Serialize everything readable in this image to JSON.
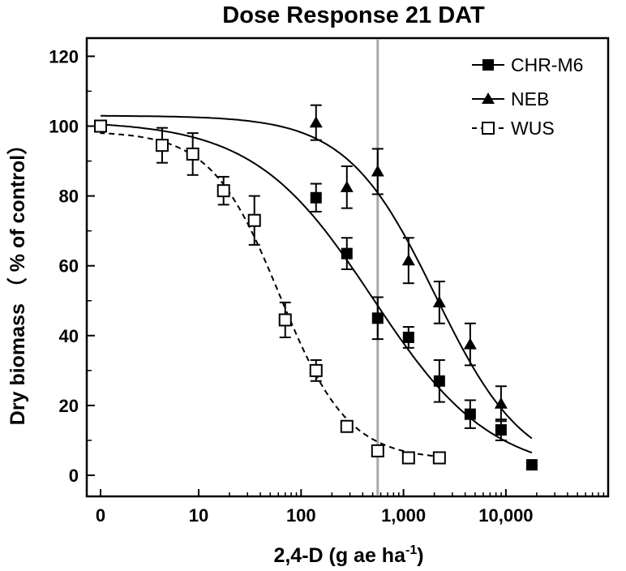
{
  "chart_data": {
    "type": "scatter",
    "title": "Dose Response 21 DAT",
    "xlabel": "2,4-D (g ae ha",
    "xlabel_superscript": "-1",
    "xlabel_suffix": ")",
    "ylabel": "Dry biomass （ % of control）",
    "x_scale": "log",
    "x_ticks": [
      {
        "value": 0,
        "label": "0"
      },
      {
        "value": 10,
        "label": "10"
      },
      {
        "value": 100,
        "label": "100"
      },
      {
        "value": 1000,
        "label": "1,000"
      },
      {
        "value": 10000,
        "label": "10,000"
      }
    ],
    "y_ticks": [
      0,
      20,
      40,
      60,
      80,
      100,
      120
    ],
    "ylim": [
      -5,
      130
    ],
    "reference_line_x": 560,
    "legend_position": "top-right",
    "series": [
      {
        "name": "CHR-M6",
        "marker": "filled-square",
        "line": "solid",
        "points": [
          {
            "x": 0,
            "y": 100,
            "err": 1.5
          },
          {
            "x": 140,
            "y": 79.5,
            "err": 4
          },
          {
            "x": 280,
            "y": 63.5,
            "err": 4.5
          },
          {
            "x": 560,
            "y": 45,
            "err": 6
          },
          {
            "x": 1120,
            "y": 39.5,
            "err": 3
          },
          {
            "x": 2240,
            "y": 27,
            "err": 6
          },
          {
            "x": 4480,
            "y": 17.5,
            "err": 4
          },
          {
            "x": 8960,
            "y": 13,
            "err": 3
          },
          {
            "x": 17920,
            "y": 3,
            "err": 0
          }
        ],
        "fit": {
          "top": 101.5,
          "bottom": 0,
          "ed50": 500,
          "slope": 0.75
        }
      },
      {
        "name": "NEB",
        "marker": "filled-triangle",
        "line": "solid",
        "points": [
          {
            "x": 140,
            "y": 101,
            "err": 5
          },
          {
            "x": 280,
            "y": 82.5,
            "err": 6
          },
          {
            "x": 560,
            "y": 87,
            "err": 6.5
          },
          {
            "x": 1120,
            "y": 61.5,
            "err": 6.5
          },
          {
            "x": 2240,
            "y": 49.5,
            "err": 6
          },
          {
            "x": 4480,
            "y": 37.5,
            "err": 6
          },
          {
            "x": 8960,
            "y": 20.5,
            "err": 5
          }
        ],
        "fit": {
          "top": 103,
          "bottom": 0,
          "ed50": 2050,
          "slope": 1.0
        }
      },
      {
        "name": "WUS",
        "marker": "open-square",
        "line": "dashed",
        "points": [
          {
            "x": 0,
            "y": 100,
            "err": 1
          },
          {
            "x": 4.4,
            "y": 94.5,
            "err": 5
          },
          {
            "x": 8.75,
            "y": 92,
            "err": 6
          },
          {
            "x": 17.5,
            "y": 81.5,
            "err": 4
          },
          {
            "x": 35,
            "y": 73,
            "err": 7
          },
          {
            "x": 70,
            "y": 44.5,
            "err": 5
          },
          {
            "x": 140,
            "y": 30,
            "err": 3
          },
          {
            "x": 280,
            "y": 14,
            "err": 1.5
          },
          {
            "x": 560,
            "y": 7,
            "err": 1
          },
          {
            "x": 1120,
            "y": 5,
            "err": 1
          },
          {
            "x": 2240,
            "y": 5,
            "err": 1
          }
        ],
        "fit": {
          "top": 98.5,
          "bottom": 4.5,
          "ed50": 62,
          "slope": 1.3,
          "x_end": 2240
        }
      }
    ]
  }
}
